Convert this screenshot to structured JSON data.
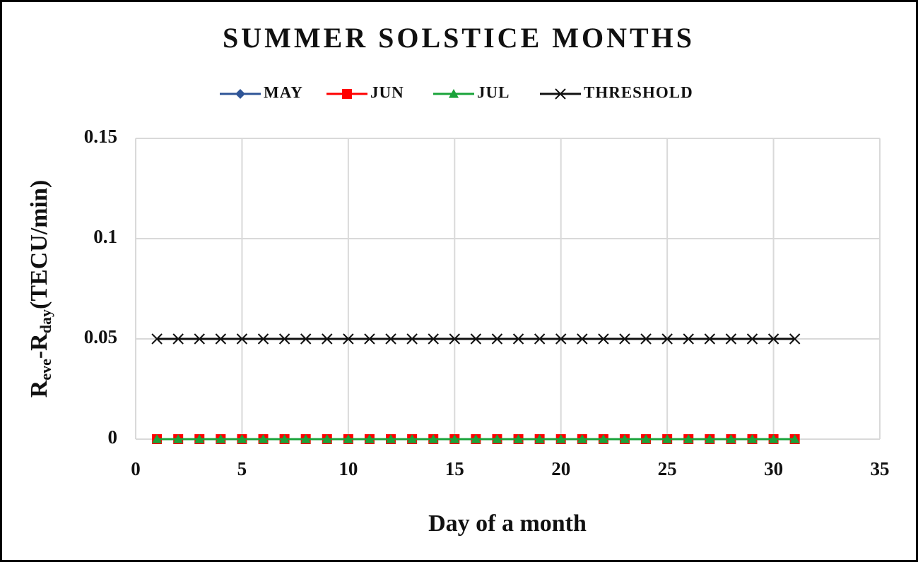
{
  "chart_data": {
    "type": "line",
    "title": "SUMMER SOLSTICE MONTHS",
    "xlabel": "Day of a month",
    "ylabel": [
      "R",
      "eve",
      "-R",
      "day",
      "(TECU/min)"
    ],
    "x": [
      1,
      2,
      3,
      4,
      5,
      6,
      7,
      8,
      9,
      10,
      11,
      12,
      13,
      14,
      15,
      16,
      17,
      18,
      19,
      20,
      21,
      22,
      23,
      24,
      25,
      26,
      27,
      28,
      29,
      30,
      31
    ],
    "series": [
      {
        "name": "MAY",
        "color": "#2f5597",
        "marker": "diamond",
        "values": [
          0,
          0,
          0,
          0,
          0,
          0,
          0,
          0,
          0,
          0,
          0,
          0,
          0,
          0,
          0,
          0,
          0,
          0,
          0,
          0,
          0,
          0,
          0,
          0,
          0,
          0,
          0,
          0,
          0,
          0,
          0
        ]
      },
      {
        "name": "JUN",
        "color": "#ff0000",
        "marker": "square",
        "values": [
          0,
          0,
          0,
          0,
          0,
          0,
          0,
          0,
          0,
          0,
          0,
          0,
          0,
          0,
          0,
          0,
          0,
          0,
          0,
          0,
          0,
          0,
          0,
          0,
          0,
          0,
          0,
          0,
          0,
          0,
          0
        ]
      },
      {
        "name": "JUL",
        "color": "#1aa33a",
        "marker": "triangle",
        "values": [
          0,
          0,
          0,
          0,
          0,
          0,
          0,
          0,
          0,
          0,
          0,
          0,
          0,
          0,
          0,
          0,
          0,
          0,
          0,
          0,
          0,
          0,
          0,
          0,
          0,
          0,
          0,
          0,
          0,
          0,
          0
        ]
      },
      {
        "name": "THRESHOLD",
        "color": "#111111",
        "marker": "x",
        "values": [
          0.05,
          0.05,
          0.05,
          0.05,
          0.05,
          0.05,
          0.05,
          0.05,
          0.05,
          0.05,
          0.05,
          0.05,
          0.05,
          0.05,
          0.05,
          0.05,
          0.05,
          0.05,
          0.05,
          0.05,
          0.05,
          0.05,
          0.05,
          0.05,
          0.05,
          0.05,
          0.05,
          0.05,
          0.05,
          0.05,
          0.05
        ]
      }
    ],
    "xlim": [
      0,
      35
    ],
    "xticks": [
      0,
      5,
      10,
      15,
      20,
      25,
      30,
      35
    ],
    "ylim": [
      0,
      0.15
    ],
    "yticks": [
      0,
      0.05,
      0.1,
      0.15
    ],
    "grid": true,
    "legend": "top"
  }
}
